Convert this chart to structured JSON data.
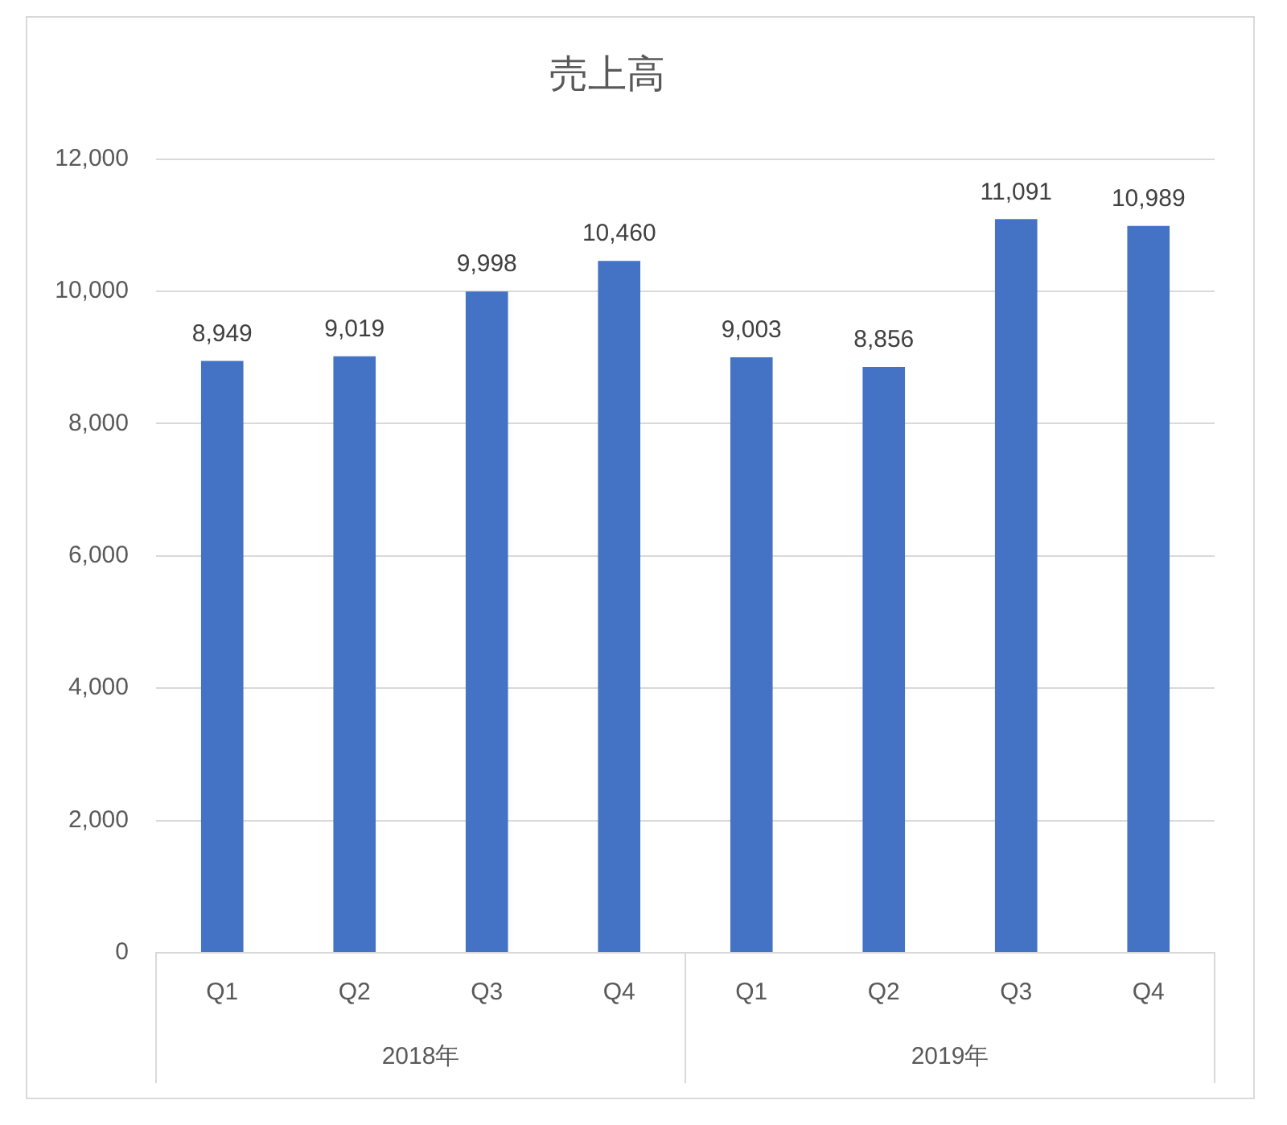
{
  "chart_data": {
    "type": "bar",
    "title": "売上高",
    "categories": [
      "Q1",
      "Q2",
      "Q3",
      "Q4",
      "Q1",
      "Q2",
      "Q3",
      "Q4"
    ],
    "values": [
      8949,
      9019,
      9998,
      10460,
      9003,
      8856,
      11091,
      10989
    ],
    "color": "#4472c4",
    "value_labels": [
      "8,949",
      "9,019",
      "9,998",
      "10,460",
      "9,003",
      "8,856",
      "11,091",
      "10,989"
    ],
    "ylim": [
      0,
      12000
    ],
    "yticks": [
      0,
      {
        "value": 2000,
        "label": "2,000"
      },
      {
        "value": 4000,
        "label": "4,000"
      },
      {
        "value": 6000,
        "label": "6,000"
      },
      {
        "value": 8000,
        "label": "8,000"
      },
      {
        "value": 10000,
        "label": "10,000"
      },
      {
        "value": 12000,
        "label": "12,000"
      }
    ],
    "grid": "y",
    "annotations": [
      "2018年",
      "2019年"
    ]
  }
}
